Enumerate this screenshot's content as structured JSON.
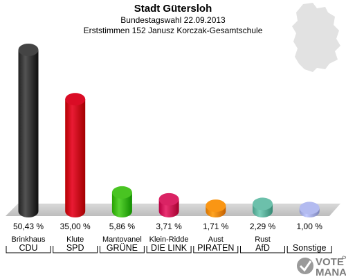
{
  "chart_data": {
    "type": "bar",
    "title": "Stadt Gütersloh",
    "subtitle": "Bundestagswahl 22.09.2013",
    "subtitle2": "Erststimmen 152 Janusz Korczak-Gesamtschule",
    "ylim": [
      0,
      50.43
    ],
    "categories": [
      {
        "candidate": "Brinkhaus",
        "party": "CDU",
        "value": 50.43,
        "label": "50,43 %",
        "color": "#3a3a3a"
      },
      {
        "candidate": "Klute",
        "party": "SPD",
        "value": 35.0,
        "label": "35,00 %",
        "color": "#d0021b"
      },
      {
        "candidate": "Mantovanel",
        "party": "GRÜNE",
        "value": 5.86,
        "label": "5,86 %",
        "color": "#3fba18"
      },
      {
        "candidate": "Klein-Ridde",
        "party": "DIE LINK",
        "value": 3.71,
        "label": "3,71 %",
        "color": "#d0195a"
      },
      {
        "candidate": "Aust",
        "party": "PIRATEN",
        "value": 1.71,
        "label": "1,71 %",
        "color": "#f08c0a"
      },
      {
        "candidate": "Rust",
        "party": "AfD",
        "value": 2.29,
        "label": "2,29 %",
        "color": "#62b6a1"
      },
      {
        "candidate": "",
        "party": "Sonstige",
        "value": 1.0,
        "label": "1,00 %",
        "color": "#a9b1e6"
      }
    ]
  },
  "logo": {
    "line1": "VOTE",
    "line2": "MANAGER",
    "suffix": ".com"
  },
  "colors": {
    "floor": "#c8c8c8",
    "map": "#e4e4e4"
  }
}
